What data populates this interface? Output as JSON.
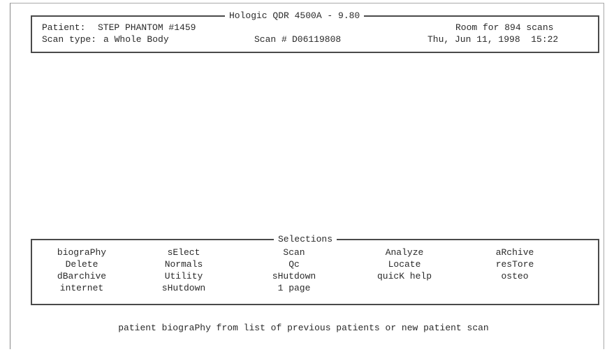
{
  "header": {
    "title": "Hologic QDR 4500A - 9.80",
    "patient_label": "Patient:",
    "patient_name": "STEP PHANTOM #1459",
    "room": "Room for 894 scans",
    "scan_type_label": "Scan type:",
    "scan_type": "a Whole Body",
    "scan_number_label": "Scan #",
    "scan_number": "D06119808",
    "datetime": "Thu, Jun 11, 1998  15:22"
  },
  "selections": {
    "title": "Selections",
    "columns": [
      [
        "biograPhy",
        "Delete",
        "dBarchive",
        "internet"
      ],
      [
        "sElect",
        "Normals",
        "Utility",
        "sHutdown"
      ],
      [
        "Scan",
        "Qc",
        "sHutdown",
        "1 page"
      ],
      [
        "Analyze",
        "Locate",
        "quicK help"
      ],
      [
        "aRchive",
        "resTore",
        "osteo"
      ]
    ]
  },
  "status_line": "patient biograPhy from list of previous patients or new patient scan"
}
